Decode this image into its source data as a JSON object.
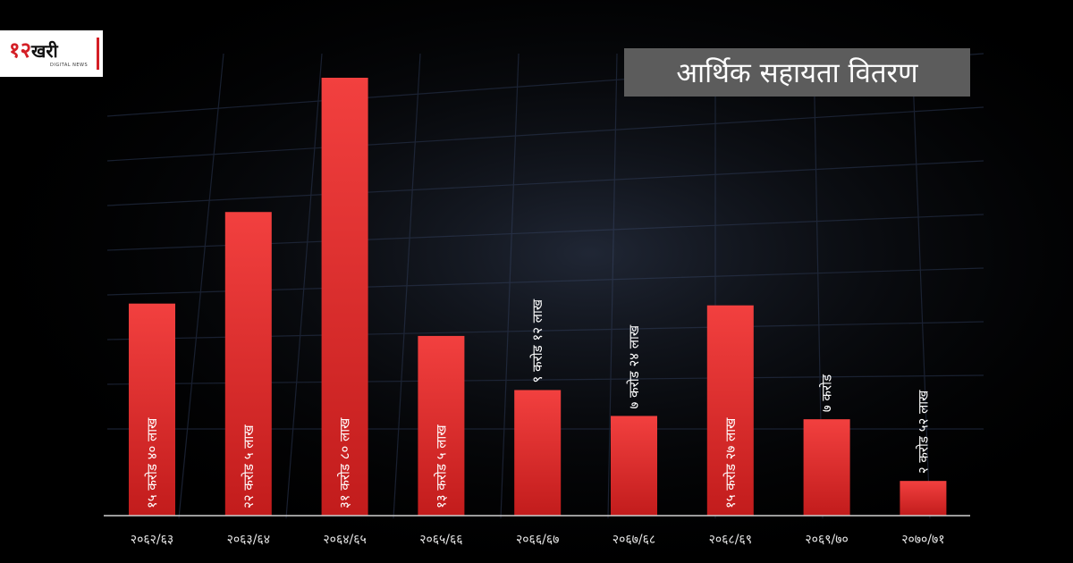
{
  "logo": {
    "number": "१२",
    "word": "खरी",
    "subtitle": "DIGITAL NEWS"
  },
  "title": "आर्थिक सहायता वितरण",
  "colors": {
    "background": "#000000",
    "bar_top": "#f2403f",
    "bar_bottom": "#c21c1c",
    "title_box": "#5c5c5c",
    "accent": "#d41f26"
  },
  "chart_data": {
    "type": "bar",
    "title": "आर्थिक सहायता वितरण",
    "xlabel": "",
    "ylabel": "",
    "unit": "lakh",
    "ylim": [
      0,
      3100
    ],
    "grid": false,
    "categories": [
      "२०६२/६३",
      "२०६३/६४",
      "२०६४/६५",
      "२०६५/६६",
      "२०६६/६७",
      "२०६७/६८",
      "२०६८/६९",
      "२०६९/७०",
      "२०७०/७१"
    ],
    "values": [
      1540,
      2205,
      3180,
      1305,
      912,
      724,
      1527,
      700,
      252
    ],
    "labels": [
      "१५ करोड ४० लाख",
      "२२ करोड ५ लाख",
      "३१ करोड ८० लाख",
      "१३ करोड ५ लाख",
      "९ करोड १२ लाख",
      "७ करोड २४ लाख",
      "१५ करोड २७ लाख",
      "७ करोड",
      "२ करोड ५२ लाख"
    ]
  }
}
